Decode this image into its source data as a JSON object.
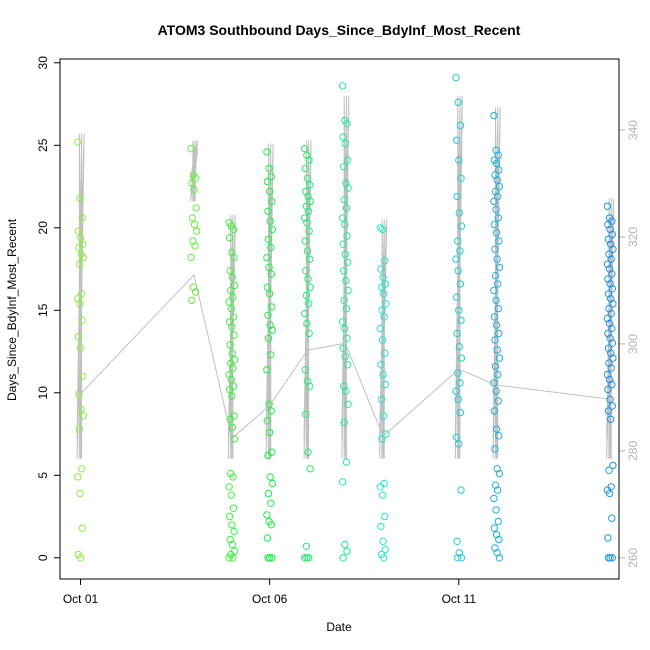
{
  "chart_data": {
    "type": "scatter",
    "title": "ATOM3 Southbound Days_Since_BdyInf_Most_Recent",
    "xlabel": "Date",
    "ylabel": "Days_Since_BdyInf_Most_Recent",
    "ylim": [
      0,
      30
    ],
    "y2lim": [
      260,
      350
    ],
    "xlim": [
      "Oct 01",
      "Oct 15"
    ],
    "x_tick_labels": [
      "Oct 01",
      "Oct 06",
      "Oct 11"
    ],
    "y_tick_labels": [
      "0",
      "5",
      "10",
      "15",
      "20",
      "25",
      "30"
    ],
    "y2_tick_labels": [
      "260",
      "280",
      "300",
      "320",
      "340"
    ],
    "grid": false,
    "colors": {
      "points_start": "#8cf03c",
      "points_mid": "#1ef046",
      "points_teal": "#24e8c8",
      "points_end": "#1e96e6",
      "secondary_line": "#c0c0c0",
      "right_axis": "#b3b3b3"
    },
    "series": [
      {
        "date": "Oct 01",
        "values": [
          25.2,
          21.8,
          20.6,
          19.8,
          19.4,
          19.0,
          18.8,
          18.4,
          18.2,
          17.8,
          16.0,
          15.7,
          15.4,
          14.4,
          13.4,
          12.7,
          11.0,
          9.9,
          9.0,
          8.6,
          7.8,
          5.4,
          4.9,
          3.9,
          1.8,
          0.2,
          0.0
        ]
      },
      {
        "date": "Oct 04",
        "values": [
          24.8,
          23.2,
          23.0,
          22.7,
          22.3,
          21.2,
          20.6,
          20.2,
          19.8,
          19.2,
          18.9,
          18.2,
          16.4,
          16.1,
          15.6
        ]
      },
      {
        "date": "Oct 05",
        "values": [
          20.3,
          20.1,
          19.9,
          19.4,
          18.5,
          18.2,
          17.4,
          17.0,
          16.5,
          16.2,
          15.8,
          15.5,
          15.1,
          14.6,
          14.3,
          14.0,
          13.5,
          12.9,
          12.4,
          12.0,
          11.8,
          11.5,
          11.1,
          10.8,
          10.4,
          10.2,
          9.8,
          8.6,
          8.4,
          7.9,
          7.2,
          5.1,
          4.9,
          4.3,
          3.8,
          3.0,
          2.5,
          2.0,
          1.6,
          1.1,
          0.8,
          0.4,
          0.2,
          0.0,
          0.0
        ]
      },
      {
        "date": "Oct 06",
        "values": [
          24.6,
          23.6,
          23.1,
          22.8,
          22.2,
          21.6,
          21.0,
          20.4,
          19.9,
          19.3,
          18.8,
          18.2,
          17.6,
          17.2,
          16.4,
          16.0,
          15.2,
          14.7,
          14.1,
          13.8,
          13.3,
          12.3,
          11.4,
          9.3,
          8.9,
          8.3,
          7.6,
          6.4,
          6.2,
          4.9,
          4.5,
          3.9,
          3.3,
          2.6,
          2.2,
          2.0,
          1.2,
          0.0,
          0.0,
          0.0
        ]
      },
      {
        "date": "Oct 07",
        "values": [
          24.8,
          24.4,
          24.1,
          23.6,
          23.0,
          22.6,
          22.2,
          21.9,
          21.6,
          21.3,
          21.0,
          20.6,
          20.3,
          19.8,
          19.2,
          18.6,
          18.1,
          17.4,
          16.9,
          16.4,
          15.9,
          15.4,
          14.8,
          14.2,
          13.6,
          11.4,
          10.7,
          10.4,
          8.7,
          6.4,
          5.4,
          0.7,
          0.0,
          0.0,
          0.0
        ]
      },
      {
        "date": "Oct 08",
        "values": [
          28.6,
          26.5,
          26.3,
          25.5,
          25.1,
          24.1,
          23.7,
          22.7,
          22.4,
          21.7,
          21.2,
          20.6,
          20.2,
          19.5,
          19.0,
          18.4,
          17.9,
          17.4,
          16.8,
          16.2,
          15.6,
          15.1,
          14.3,
          13.9,
          13.3,
          12.7,
          12.2,
          11.7,
          10.4,
          10.1,
          9.3,
          8.2,
          5.8,
          4.6,
          0.8,
          0.4,
          0.0
        ]
      },
      {
        "date": "Oct 09",
        "values": [
          20.0,
          19.9,
          18.0,
          17.5,
          17.0,
          16.6,
          16.4,
          16.0,
          15.4,
          15.0,
          14.6,
          13.9,
          13.2,
          12.4,
          11.7,
          11.1,
          10.5,
          9.6,
          8.6,
          7.5,
          7.2,
          4.5,
          4.3,
          3.8,
          2.5,
          1.9,
          1.0,
          0.5,
          0.2,
          0.0
        ]
      },
      {
        "date": "Oct 11",
        "values": [
          29.1,
          27.6,
          26.2,
          25.3,
          24.1,
          23.0,
          21.9,
          20.9,
          20.1,
          19.2,
          18.6,
          18.1,
          17.4,
          16.6,
          15.8,
          15.0,
          14.4,
          13.6,
          12.8,
          12.1,
          11.2,
          10.6,
          10.1,
          9.6,
          8.8,
          7.3,
          6.9,
          4.1,
          1.0,
          0.3,
          0.0,
          0.0
        ]
      },
      {
        "date": "Oct 12",
        "values": [
          26.8,
          24.7,
          24.4,
          24.1,
          23.9,
          23.5,
          23.2,
          22.9,
          22.5,
          22.2,
          21.9,
          21.6,
          21.1,
          20.6,
          20.2,
          19.7,
          19.2,
          18.7,
          18.1,
          17.6,
          17.1,
          16.6,
          16.2,
          15.6,
          15.1,
          14.6,
          14.1,
          13.6,
          13.2,
          12.6,
          12.1,
          11.6,
          11.1,
          10.6,
          10.1,
          9.5,
          8.9,
          7.8,
          7.4,
          6.6,
          5.4,
          5.1,
          4.4,
          4.1,
          3.6,
          2.9,
          2.2,
          1.8,
          1.4,
          1.1,
          0.6,
          0.3,
          0.0
        ]
      },
      {
        "date": "Oct 15",
        "values": [
          21.3,
          20.6,
          20.4,
          20.2,
          19.9,
          19.6,
          19.3,
          19.0,
          18.7,
          18.4,
          18.1,
          17.8,
          17.5,
          17.2,
          16.9,
          16.6,
          16.3,
          16.0,
          15.7,
          15.4,
          15.1,
          14.8,
          14.5,
          14.2,
          13.9,
          13.6,
          13.3,
          13.0,
          12.7,
          12.4,
          12.1,
          11.8,
          11.5,
          11.1,
          10.8,
          10.5,
          10.2,
          9.6,
          9.2,
          8.9,
          8.4,
          5.6,
          5.3,
          4.3,
          4.1,
          3.9,
          2.4,
          1.2,
          0.0,
          0.0,
          0.0
        ]
      }
    ]
  }
}
